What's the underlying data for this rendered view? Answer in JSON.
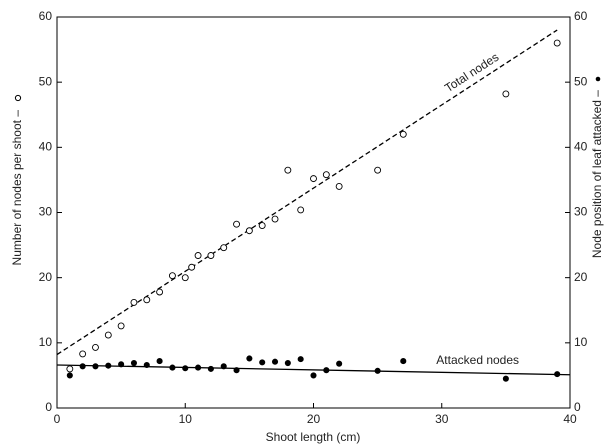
{
  "chart_data": {
    "type": "scatter",
    "x_label": "Shoot length (cm)",
    "y_label": "Number of nodes per shoot –",
    "y2_label": "Node position of leaf attacked –",
    "xlim": [
      0,
      40
    ],
    "xticks": [
      0,
      10,
      20,
      30,
      40
    ],
    "ylim": [
      0,
      60
    ],
    "yticks": [
      0,
      10,
      20,
      30,
      40,
      50,
      60
    ],
    "y2lim": [
      0,
      60
    ],
    "y2ticks": [
      0,
      10,
      20,
      30,
      40,
      50,
      60
    ],
    "grid": false,
    "series": [
      {
        "name": "Total nodes",
        "marker": "open",
        "color": "#000000",
        "line_style": "dashed",
        "x": [
          1,
          2,
          3,
          4,
          5,
          6,
          7,
          8,
          9,
          10,
          10.5,
          11,
          12,
          13,
          14,
          15,
          16,
          17,
          18,
          19,
          20,
          21,
          22,
          25,
          27,
          35,
          39
        ],
        "values": [
          6,
          8.3,
          9.3,
          11.2,
          12.6,
          16.2,
          16.6,
          17.8,
          20.3,
          20,
          21.6,
          23.4,
          23.4,
          24.6,
          28.2,
          27.2,
          28,
          29,
          36.5,
          30.4,
          35.2,
          35.8,
          34,
          36.5,
          42,
          48.2,
          56
        ],
        "trend": {
          "x": [
            0,
            39
          ],
          "values": [
            8.2,
            58
          ]
        }
      },
      {
        "name": "Attacked nodes",
        "marker": "filled",
        "color": "#000000",
        "line_style": "solid",
        "axis": "y2",
        "x": [
          1,
          2,
          3,
          4,
          5,
          6,
          7,
          8,
          9,
          10,
          11,
          12,
          13,
          14,
          15,
          16,
          17,
          18,
          19,
          20,
          21,
          22,
          25,
          27,
          35,
          39
        ],
        "values": [
          5,
          6.4,
          6.4,
          6.5,
          6.7,
          6.9,
          6.6,
          7.2,
          6.2,
          6.1,
          6.2,
          6,
          6.4,
          5.8,
          7.6,
          7,
          7.1,
          6.9,
          7.5,
          5,
          5.8,
          6.8,
          5.7,
          7.2,
          4.5,
          5.2
        ],
        "trend": {
          "x": [
            0,
            40
          ],
          "values": [
            6.6,
            5.1
          ]
        }
      }
    ]
  }
}
